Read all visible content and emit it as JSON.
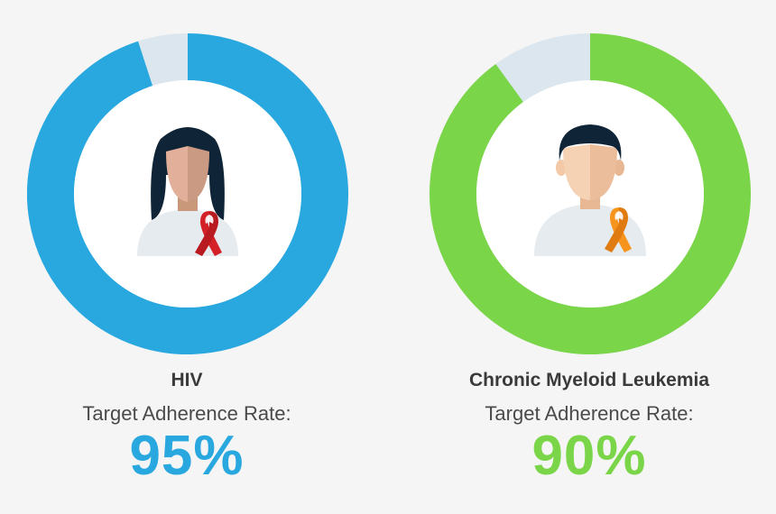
{
  "chart_data": [
    {
      "type": "pie",
      "title": "HIV",
      "subtitle": "Target Adherence Rate:",
      "value_label": "95%",
      "values": [
        95,
        5
      ],
      "colors": [
        "#29a8e0",
        "#dbe6ee"
      ],
      "icon": "woman-with-red-ribbon-icon"
    },
    {
      "type": "pie",
      "title": "Chronic Myeloid Leukemia",
      "subtitle": "Target Adherence Rate:",
      "value_label": "90%",
      "values": [
        90,
        10
      ],
      "colors": [
        "#7ad548",
        "#dbe6ee"
      ],
      "icon": "man-with-orange-ribbon-icon"
    }
  ],
  "colors": {
    "hiv_accent": "#29a8e0",
    "cml_accent": "#7ad548",
    "remainder": "#dbe6ee",
    "background": "#f5f5f5"
  }
}
